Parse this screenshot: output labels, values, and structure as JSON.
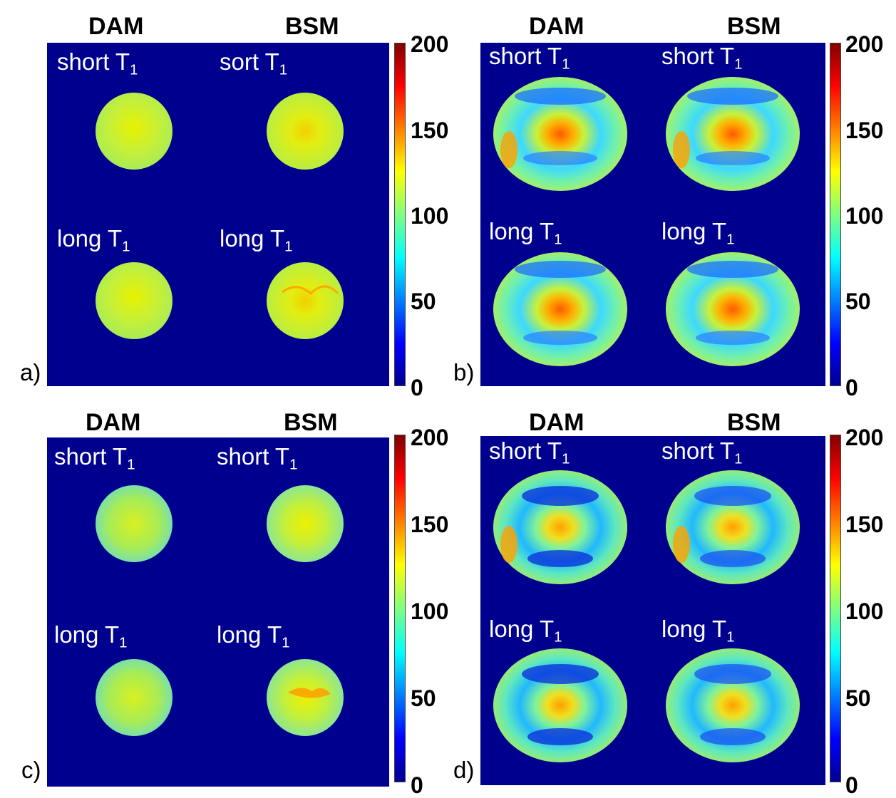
{
  "colorbar": {
    "ticks": [
      "0",
      "50",
      "100",
      "150",
      "200"
    ]
  },
  "panels": [
    {
      "label": "a)",
      "col_left": "DAM",
      "col_right": "BSM",
      "tl": {
        "base": "short T",
        "sub": "1"
      },
      "tr": {
        "base": "sort T",
        "sub": "1"
      },
      "bl": {
        "base": "long T",
        "sub": "1"
      },
      "br": {
        "base": "long T",
        "sub": "1"
      }
    },
    {
      "label": "b)",
      "col_left": "DAM",
      "col_right": "BSM",
      "tl": {
        "base": "short T",
        "sub": "1"
      },
      "tr": {
        "base": "short T",
        "sub": "1"
      },
      "bl": {
        "base": "long T",
        "sub": "1"
      },
      "br": {
        "base": "long T",
        "sub": "1"
      }
    },
    {
      "label": "c)",
      "col_left": "DAM",
      "col_right": "BSM",
      "tl": {
        "base": "short T",
        "sub": "1"
      },
      "tr": {
        "base": "short T",
        "sub": "1"
      },
      "bl": {
        "base": "long T",
        "sub": "1"
      },
      "br": {
        "base": "long T",
        "sub": "1"
      }
    },
    {
      "label": "d)",
      "col_left": "DAM",
      "col_right": "BSM",
      "tl": {
        "base": "short T",
        "sub": "1"
      },
      "tr": {
        "base": "short T",
        "sub": "1"
      },
      "bl": {
        "base": "long T",
        "sub": "1"
      },
      "br": {
        "base": "long T",
        "sub": "1"
      }
    }
  ]
}
